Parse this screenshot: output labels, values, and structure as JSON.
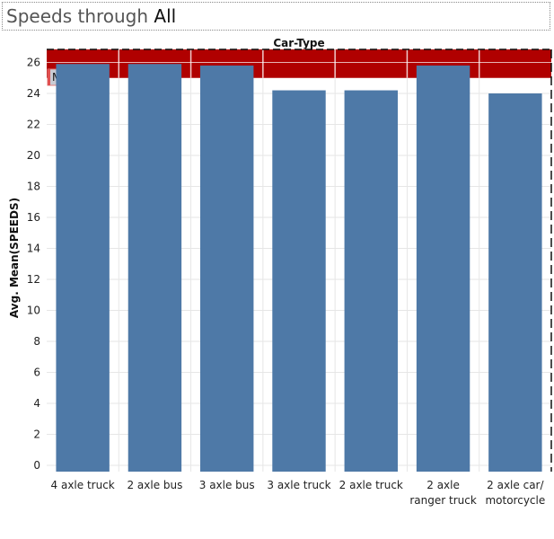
{
  "header": {
    "title_prefix": "Speeds through",
    "title_value": "All"
  },
  "chart_data": {
    "type": "bar",
    "column_header": "Car-Type",
    "ylabel": "Avg. Mean(SPEEDS)",
    "ylim": [
      0,
      27
    ],
    "yticks": [
      0,
      2,
      4,
      6,
      8,
      10,
      12,
      14,
      16,
      18,
      20,
      22,
      24,
      26
    ],
    "categories": [
      [
        "4 axle truck"
      ],
      [
        "2 axle bus"
      ],
      [
        "3 axle bus"
      ],
      [
        "3 axle truck"
      ],
      [
        "2 axle truck"
      ],
      [
        "2 axle",
        "ranger truck"
      ],
      [
        "2 axle car/",
        "motorcycle"
      ]
    ],
    "values": [
      25.9,
      25.9,
      25.8,
      24.2,
      24.2,
      25.8,
      24.0
    ],
    "reference_band": {
      "label": "MaxSpeed",
      "from": 25,
      "to": 27.1,
      "color": "#b00000"
    },
    "bar_color": "#4e79a7",
    "grid": true
  }
}
